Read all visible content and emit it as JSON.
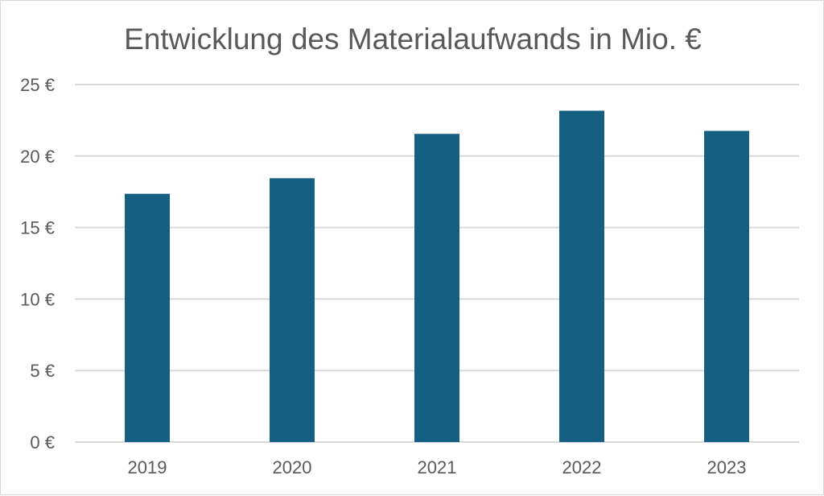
{
  "chart_data": {
    "type": "bar",
    "title": "Entwicklung des Materialaufwands in Mio. €",
    "xlabel": "",
    "ylabel": "",
    "categories": [
      "2019",
      "2020",
      "2021",
      "2022",
      "2023"
    ],
    "values": [
      17.36,
      18.45,
      21.55,
      23.17,
      21.76
    ],
    "ylim": [
      0,
      25
    ],
    "yticks": [
      0,
      5,
      10,
      15,
      20,
      25
    ],
    "ytick_labels": [
      "0 €",
      "5 €",
      "10 €",
      "15 €",
      "20 €",
      "25 €"
    ],
    "grid": true,
    "legend": "none",
    "colors": {
      "bar": "#156082",
      "grid": "#d9d9d9",
      "text": "#595959"
    }
  }
}
